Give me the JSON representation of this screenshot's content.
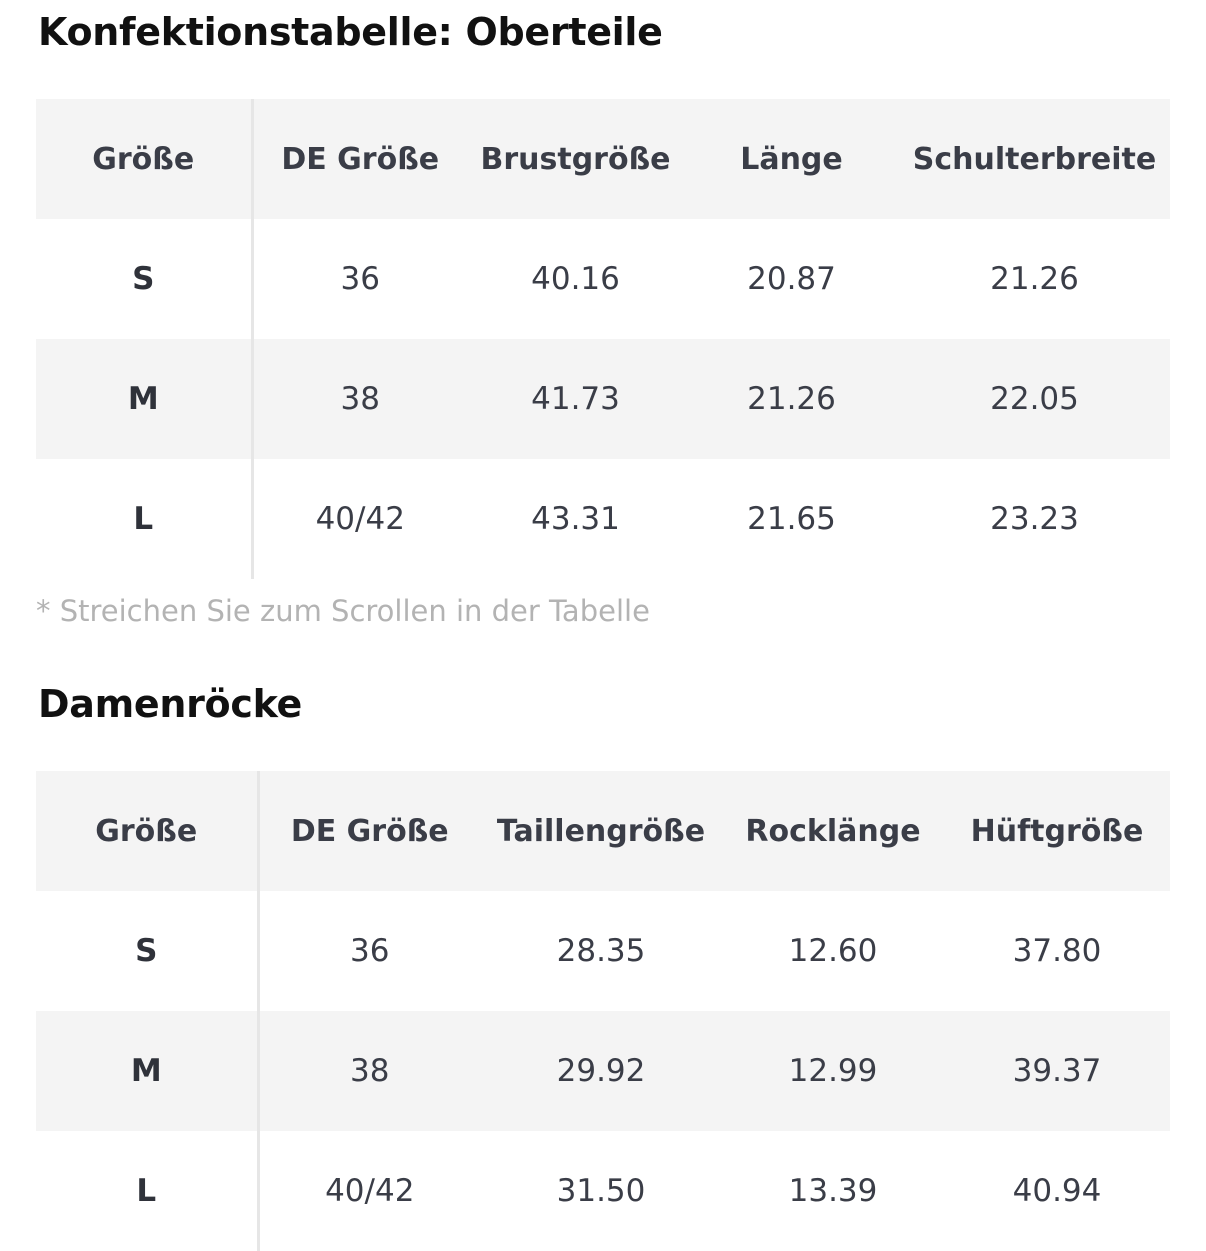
{
  "tops": {
    "title": "Konfektionstabelle: Oberteile",
    "headers": [
      "Größe",
      "DE Größe",
      "Brustgröße",
      "Länge",
      "Schulterbreite"
    ],
    "rows": [
      [
        "S",
        "36",
        "40.16",
        "20.87",
        "21.26"
      ],
      [
        "M",
        "38",
        "41.73",
        "21.26",
        "22.05"
      ],
      [
        "L",
        "40/42",
        "43.31",
        "21.65",
        "23.23"
      ]
    ],
    "note": "* Streichen Sie zum Scrollen in der Tabelle"
  },
  "skirts": {
    "title": "Damenröcke",
    "headers": [
      "Größe",
      "DE Größe",
      "Taillengröße",
      "Rocklänge",
      "Hüftgröße"
    ],
    "rows": [
      [
        "S",
        "36",
        "28.35",
        "12.60",
        "37.80"
      ],
      [
        "M",
        "38",
        "29.92",
        "12.99",
        "39.37"
      ],
      [
        "L",
        "40/42",
        "31.50",
        "13.39",
        "40.94"
      ]
    ]
  },
  "colors": {
    "heading_text": "#111111",
    "cell_text": "#3a3d47",
    "row_shade": "#f4f4f4",
    "divider": "#e6e6e6",
    "note_text": "#b3b3b3"
  }
}
